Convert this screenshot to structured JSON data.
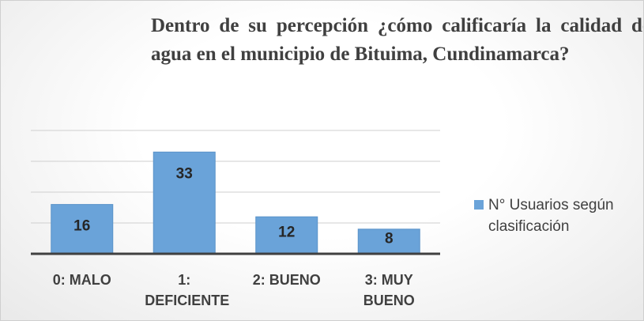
{
  "chart_data": {
    "type": "bar",
    "title": "Dentro de su percepción ¿cómo calificaría la calidad del agua en el municipio de Bituima, Cundinamarca?",
    "categories": [
      "0: MALO",
      "1: DEFICIENTE",
      "2: BUENO",
      "3: MUY BUENO"
    ],
    "series": [
      {
        "name": "N° Usuarios según clasificación",
        "color": "#6aa3d9",
        "values": [
          16,
          33,
          12,
          8
        ]
      }
    ],
    "ylim": [
      0,
      40
    ],
    "yticks": [
      0,
      10,
      20,
      30,
      40
    ],
    "grid": true
  }
}
